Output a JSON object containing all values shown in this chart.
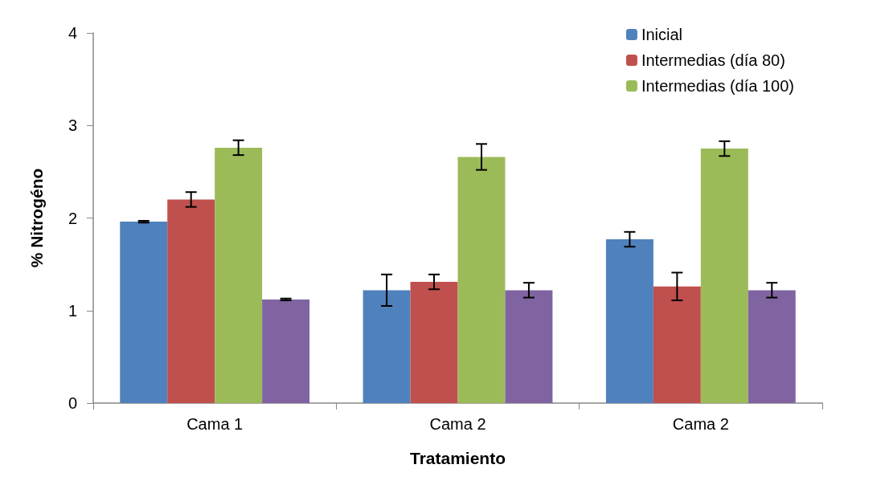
{
  "chart_data": {
    "type": "bar",
    "xlabel": "Tratamiento",
    "ylabel": "% Nitrogéno",
    "categories": [
      "Cama 1",
      "Cama 2",
      "Cama 2"
    ],
    "series": [
      {
        "name": "Inicial",
        "color": "#4f81bd",
        "values": [
          1.96,
          1.22,
          1.77
        ],
        "errors": [
          0.01,
          0.17,
          0.08
        ]
      },
      {
        "name": "Intermedias (día 80)",
        "color": "#c0504d",
        "values": [
          2.2,
          1.31,
          1.26
        ],
        "errors": [
          0.08,
          0.08,
          0.15
        ]
      },
      {
        "name": "Intermedias (día 100)",
        "color": "#9bbb59",
        "values": [
          2.76,
          2.66,
          2.75
        ],
        "errors": [
          0.08,
          0.14,
          0.08
        ]
      },
      {
        "color": "#8064a2",
        "values": [
          1.12,
          1.22,
          1.22
        ],
        "errors": [
          0.01,
          0.08,
          0.08
        ]
      }
    ],
    "ylim": [
      0,
      4
    ],
    "yticks": [
      0,
      1,
      2,
      3,
      4
    ],
    "grid": false,
    "legend": "top right"
  }
}
